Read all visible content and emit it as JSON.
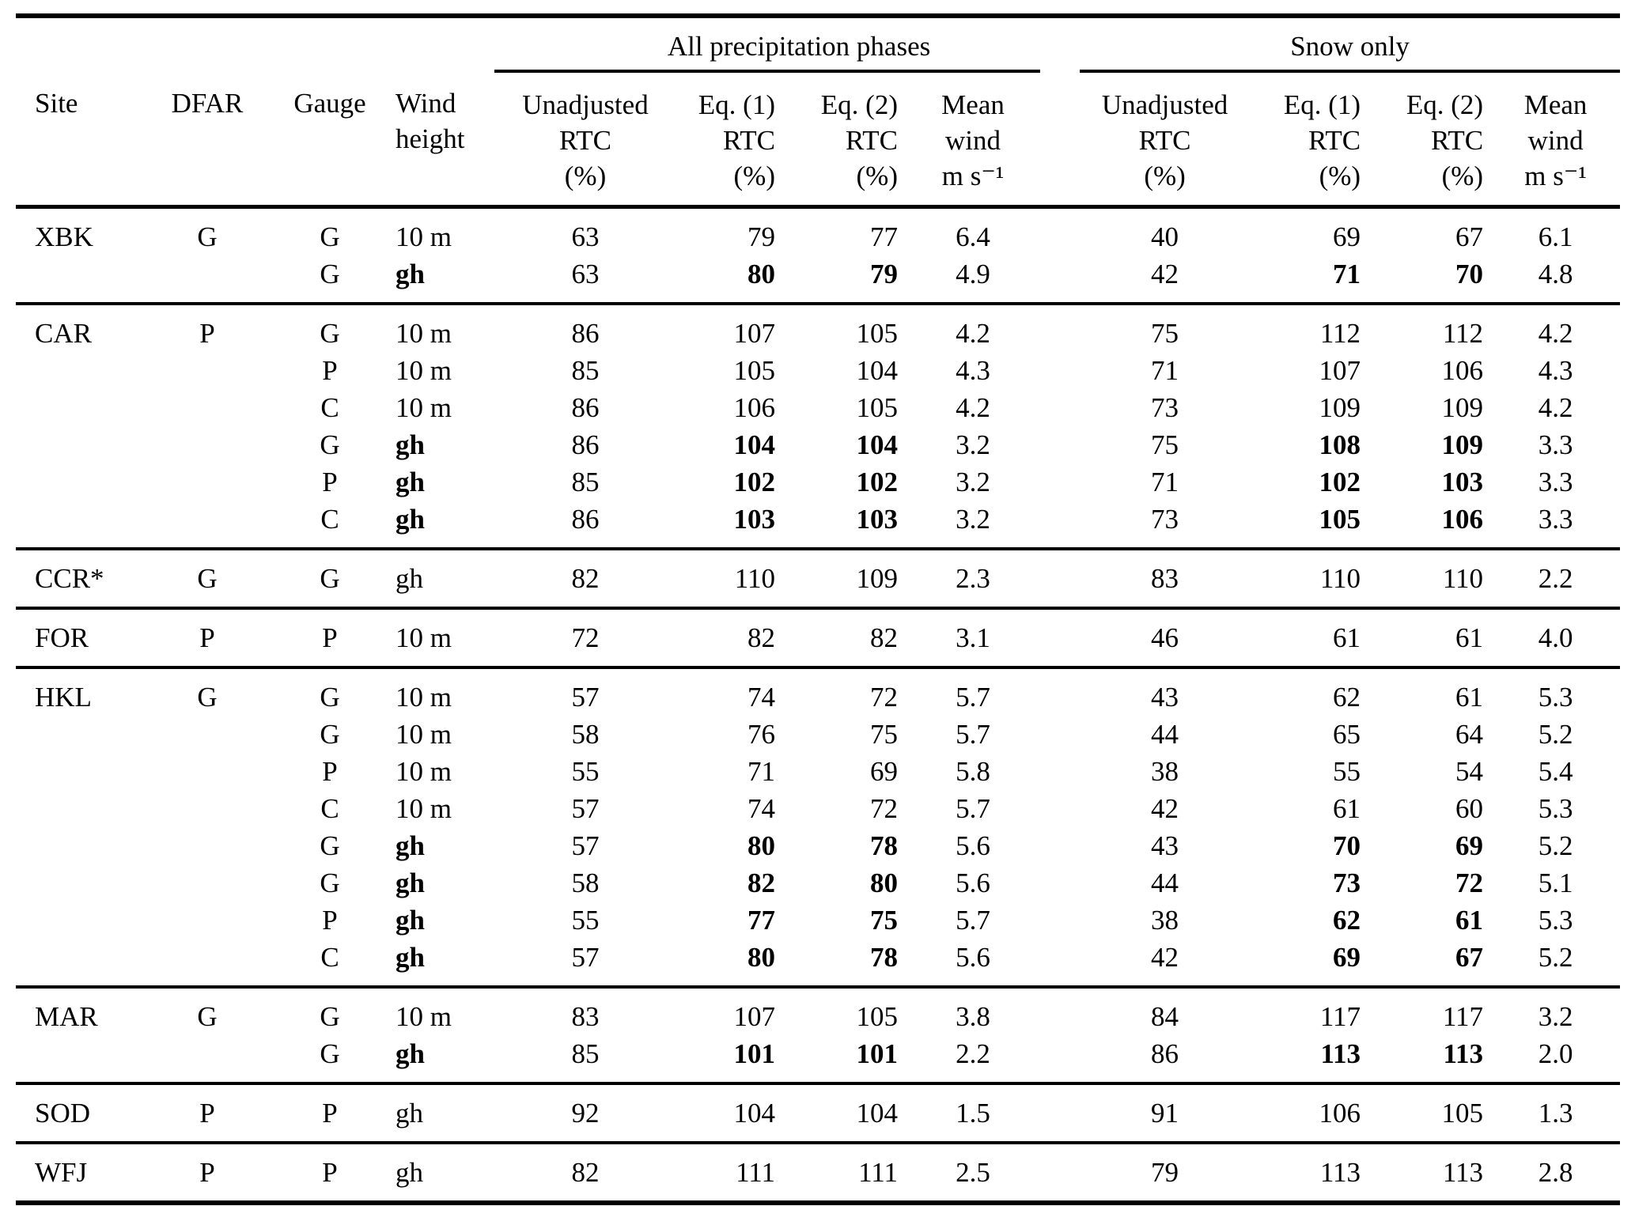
{
  "table": {
    "group_headers": {
      "all_phases": "All precipitation phases",
      "snow_only": "Snow only"
    },
    "column_keys": [
      "site",
      "dfar",
      "gauge",
      "wind_height",
      "p_unadj",
      "p_eq1",
      "p_eq2",
      "p_wind",
      "s_unadj",
      "s_eq1",
      "s_eq2",
      "s_wind"
    ],
    "columns": {
      "site": {
        "lines": [
          "Site"
        ]
      },
      "dfar": {
        "lines": [
          "DFAR"
        ]
      },
      "gauge": {
        "lines": [
          "Gauge"
        ]
      },
      "wind_height": {
        "lines": [
          "Wind",
          "height"
        ]
      },
      "p_unadj": {
        "lines": [
          "Unadjusted",
          "RTC",
          "(%)"
        ]
      },
      "p_eq1": {
        "lines": [
          "Eq. (1)",
          "RTC",
          "(%)"
        ]
      },
      "p_eq2": {
        "lines": [
          "Eq. (2)",
          "RTC",
          "(%)"
        ]
      },
      "p_wind": {
        "lines": [
          "Mean",
          "wind",
          "m s⁻¹"
        ]
      },
      "s_unadj": {
        "lines": [
          "Unadjusted",
          "RTC",
          "(%)"
        ]
      },
      "s_eq1": {
        "lines": [
          "Eq. (1)",
          "RTC",
          "(%)"
        ]
      },
      "s_eq2": {
        "lines": [
          "Eq. (2)",
          "RTC",
          "(%)"
        ]
      },
      "s_wind": {
        "lines": [
          "Mean",
          "wind",
          "m s⁻¹"
        ]
      }
    },
    "text_color": "#000000",
    "background_color": "#ffffff",
    "sections": [
      {
        "site": "XBK",
        "rows": [
          {
            "cells": {
              "site": "XBK",
              "dfar": "G",
              "gauge": "G",
              "wind_height": "10 m",
              "p_unadj": "63",
              "p_eq1": "79",
              "p_eq2": "77",
              "p_wind": "6.4",
              "s_unadj": "40",
              "s_eq1": "69",
              "s_eq2": "67",
              "s_wind": "6.1"
            },
            "bold": []
          },
          {
            "cells": {
              "site": "",
              "dfar": "",
              "gauge": "G",
              "wind_height": "gh",
              "p_unadj": "63",
              "p_eq1": "80",
              "p_eq2": "79",
              "p_wind": "4.9",
              "s_unadj": "42",
              "s_eq1": "71",
              "s_eq2": "70",
              "s_wind": "4.8"
            },
            "bold": [
              "wind_height",
              "p_eq1",
              "p_eq2",
              "s_eq1",
              "s_eq2"
            ]
          }
        ]
      },
      {
        "site": "CAR",
        "rows": [
          {
            "cells": {
              "site": "CAR",
              "dfar": "P",
              "gauge": "G",
              "wind_height": "10 m",
              "p_unadj": "86",
              "p_eq1": "107",
              "p_eq2": "105",
              "p_wind": "4.2",
              "s_unadj": "75",
              "s_eq1": "112",
              "s_eq2": "112",
              "s_wind": "4.2"
            },
            "bold": []
          },
          {
            "cells": {
              "site": "",
              "dfar": "",
              "gauge": "P",
              "wind_height": "10 m",
              "p_unadj": "85",
              "p_eq1": "105",
              "p_eq2": "104",
              "p_wind": "4.3",
              "s_unadj": "71",
              "s_eq1": "107",
              "s_eq2": "106",
              "s_wind": "4.3"
            },
            "bold": []
          },
          {
            "cells": {
              "site": "",
              "dfar": "",
              "gauge": "C",
              "wind_height": "10 m",
              "p_unadj": "86",
              "p_eq1": "106",
              "p_eq2": "105",
              "p_wind": "4.2",
              "s_unadj": "73",
              "s_eq1": "109",
              "s_eq2": "109",
              "s_wind": "4.2"
            },
            "bold": []
          },
          {
            "cells": {
              "site": "",
              "dfar": "",
              "gauge": "G",
              "wind_height": "gh",
              "p_unadj": "86",
              "p_eq1": "104",
              "p_eq2": "104",
              "p_wind": "3.2",
              "s_unadj": "75",
              "s_eq1": "108",
              "s_eq2": "109",
              "s_wind": "3.3"
            },
            "bold": [
              "wind_height",
              "p_eq1",
              "p_eq2",
              "s_eq1",
              "s_eq2"
            ]
          },
          {
            "cells": {
              "site": "",
              "dfar": "",
              "gauge": "P",
              "wind_height": "gh",
              "p_unadj": "85",
              "p_eq1": "102",
              "p_eq2": "102",
              "p_wind": "3.2",
              "s_unadj": "71",
              "s_eq1": "102",
              "s_eq2": "103",
              "s_wind": "3.3"
            },
            "bold": [
              "wind_height",
              "p_eq1",
              "p_eq2",
              "s_eq1",
              "s_eq2"
            ]
          },
          {
            "cells": {
              "site": "",
              "dfar": "",
              "gauge": "C",
              "wind_height": "gh",
              "p_unadj": "86",
              "p_eq1": "103",
              "p_eq2": "103",
              "p_wind": "3.2",
              "s_unadj": "73",
              "s_eq1": "105",
              "s_eq2": "106",
              "s_wind": "3.3"
            },
            "bold": [
              "wind_height",
              "p_eq1",
              "p_eq2",
              "s_eq1",
              "s_eq2"
            ]
          }
        ]
      },
      {
        "site": "CCR*",
        "rows": [
          {
            "cells": {
              "site": "CCR*",
              "dfar": "G",
              "gauge": "G",
              "wind_height": "gh",
              "p_unadj": "82",
              "p_eq1": "110",
              "p_eq2": "109",
              "p_wind": "2.3",
              "s_unadj": "83",
              "s_eq1": "110",
              "s_eq2": "110",
              "s_wind": "2.2"
            },
            "bold": []
          }
        ]
      },
      {
        "site": "FOR",
        "rows": [
          {
            "cells": {
              "site": "FOR",
              "dfar": "P",
              "gauge": "P",
              "wind_height": "10 m",
              "p_unadj": "72",
              "p_eq1": "82",
              "p_eq2": "82",
              "p_wind": "3.1",
              "s_unadj": "46",
              "s_eq1": "61",
              "s_eq2": "61",
              "s_wind": "4.0"
            },
            "bold": []
          }
        ]
      },
      {
        "site": "HKL",
        "rows": [
          {
            "cells": {
              "site": "HKL",
              "dfar": "G",
              "gauge": "G",
              "wind_height": "10 m",
              "p_unadj": "57",
              "p_eq1": "74",
              "p_eq2": "72",
              "p_wind": "5.7",
              "s_unadj": "43",
              "s_eq1": "62",
              "s_eq2": "61",
              "s_wind": "5.3"
            },
            "bold": []
          },
          {
            "cells": {
              "site": "",
              "dfar": "",
              "gauge": "G",
              "wind_height": "10 m",
              "p_unadj": "58",
              "p_eq1": "76",
              "p_eq2": "75",
              "p_wind": "5.7",
              "s_unadj": "44",
              "s_eq1": "65",
              "s_eq2": "64",
              "s_wind": "5.2"
            },
            "bold": []
          },
          {
            "cells": {
              "site": "",
              "dfar": "",
              "gauge": "P",
              "wind_height": "10 m",
              "p_unadj": "55",
              "p_eq1": "71",
              "p_eq2": "69",
              "p_wind": "5.8",
              "s_unadj": "38",
              "s_eq1": "55",
              "s_eq2": "54",
              "s_wind": "5.4"
            },
            "bold": []
          },
          {
            "cells": {
              "site": "",
              "dfar": "",
              "gauge": "C",
              "wind_height": "10 m",
              "p_unadj": "57",
              "p_eq1": "74",
              "p_eq2": "72",
              "p_wind": "5.7",
              "s_unadj": "42",
              "s_eq1": "61",
              "s_eq2": "60",
              "s_wind": "5.3"
            },
            "bold": []
          },
          {
            "cells": {
              "site": "",
              "dfar": "",
              "gauge": "G",
              "wind_height": "gh",
              "p_unadj": "57",
              "p_eq1": "80",
              "p_eq2": "78",
              "p_wind": "5.6",
              "s_unadj": "43",
              "s_eq1": "70",
              "s_eq2": "69",
              "s_wind": "5.2"
            },
            "bold": [
              "wind_height",
              "p_eq1",
              "p_eq2",
              "s_eq1",
              "s_eq2"
            ]
          },
          {
            "cells": {
              "site": "",
              "dfar": "",
              "gauge": "G",
              "wind_height": "gh",
              "p_unadj": "58",
              "p_eq1": "82",
              "p_eq2": "80",
              "p_wind": "5.6",
              "s_unadj": "44",
              "s_eq1": "73",
              "s_eq2": "72",
              "s_wind": "5.1"
            },
            "bold": [
              "wind_height",
              "p_eq1",
              "p_eq2",
              "s_eq1",
              "s_eq2"
            ]
          },
          {
            "cells": {
              "site": "",
              "dfar": "",
              "gauge": "P",
              "wind_height": "gh",
              "p_unadj": "55",
              "p_eq1": "77",
              "p_eq2": "75",
              "p_wind": "5.7",
              "s_unadj": "38",
              "s_eq1": "62",
              "s_eq2": "61",
              "s_wind": "5.3"
            },
            "bold": [
              "wind_height",
              "p_eq1",
              "p_eq2",
              "s_eq1",
              "s_eq2"
            ]
          },
          {
            "cells": {
              "site": "",
              "dfar": "",
              "gauge": "C",
              "wind_height": "gh",
              "p_unadj": "57",
              "p_eq1": "80",
              "p_eq2": "78",
              "p_wind": "5.6",
              "s_unadj": "42",
              "s_eq1": "69",
              "s_eq2": "67",
              "s_wind": "5.2"
            },
            "bold": [
              "wind_height",
              "p_eq1",
              "p_eq2",
              "s_eq1",
              "s_eq2"
            ]
          }
        ]
      },
      {
        "site": "MAR",
        "rows": [
          {
            "cells": {
              "site": "MAR",
              "dfar": "G",
              "gauge": "G",
              "wind_height": "10 m",
              "p_unadj": "83",
              "p_eq1": "107",
              "p_eq2": "105",
              "p_wind": "3.8",
              "s_unadj": "84",
              "s_eq1": "117",
              "s_eq2": "117",
              "s_wind": "3.2"
            },
            "bold": []
          },
          {
            "cells": {
              "site": "",
              "dfar": "",
              "gauge": "G",
              "wind_height": "gh",
              "p_unadj": "85",
              "p_eq1": "101",
              "p_eq2": "101",
              "p_wind": "2.2",
              "s_unadj": "86",
              "s_eq1": "113",
              "s_eq2": "113",
              "s_wind": "2.0"
            },
            "bold": [
              "wind_height",
              "p_eq1",
              "p_eq2",
              "s_eq1",
              "s_eq2"
            ]
          }
        ]
      },
      {
        "site": "SOD",
        "rows": [
          {
            "cells": {
              "site": "SOD",
              "dfar": "P",
              "gauge": "P",
              "wind_height": "gh",
              "p_unadj": "92",
              "p_eq1": "104",
              "p_eq2": "104",
              "p_wind": "1.5",
              "s_unadj": "91",
              "s_eq1": "106",
              "s_eq2": "105",
              "s_wind": "1.3"
            },
            "bold": []
          }
        ]
      },
      {
        "site": "WFJ",
        "rows": [
          {
            "cells": {
              "site": "WFJ",
              "dfar": "P",
              "gauge": "P",
              "wind_height": "gh",
              "p_unadj": "82",
              "p_eq1": "111",
              "p_eq2": "111",
              "p_wind": "2.5",
              "s_unadj": "79",
              "s_eq1": "113",
              "s_eq2": "113",
              "s_wind": "2.8"
            },
            "bold": []
          }
        ]
      }
    ]
  }
}
